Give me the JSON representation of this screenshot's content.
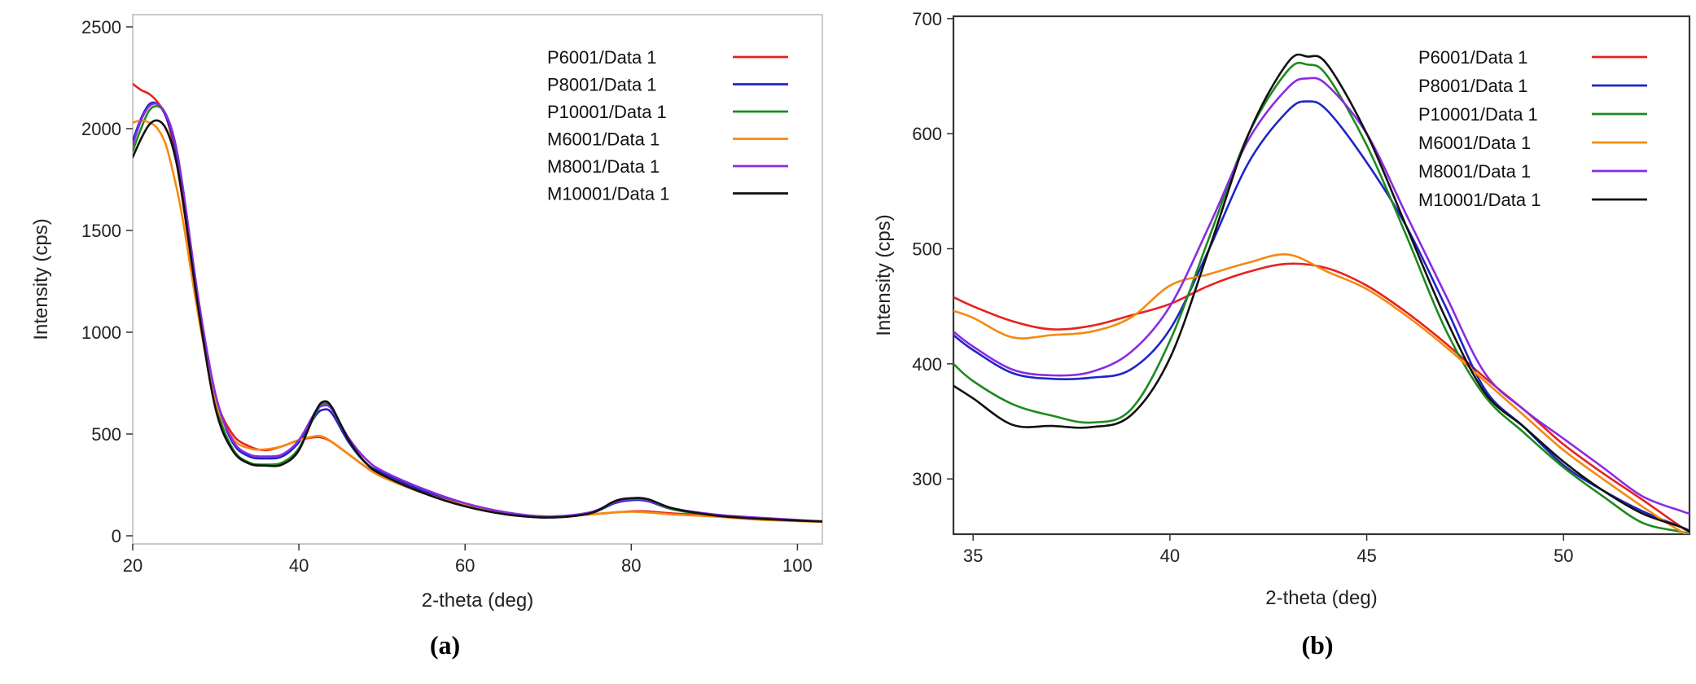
{
  "chart_data": [
    {
      "type": "line",
      "panel_label": "(a)",
      "xlabel": "2-theta (deg)",
      "ylabel": "Intensity (cps)",
      "xlim": [
        20,
        103
      ],
      "ylim": [
        -40,
        2560
      ],
      "x_ticks": [
        20,
        40,
        60,
        80,
        100
      ],
      "y_ticks": [
        0,
        500,
        1000,
        1500,
        2000,
        2500
      ],
      "grid": false,
      "legend_position": "top-right",
      "series": [
        {
          "name": "P6001/Data 1",
          "color": "#e8211d",
          "x": [
            20,
            21,
            22,
            23,
            24,
            25,
            26,
            28,
            30,
            32,
            34,
            36,
            38,
            40,
            42,
            43,
            44,
            46,
            48,
            50,
            55,
            60,
            65,
            70,
            75,
            78,
            80,
            82,
            85,
            90,
            95,
            100,
            103
          ],
          "y": [
            2220,
            2190,
            2170,
            2130,
            2060,
            1900,
            1650,
            1100,
            680,
            500,
            440,
            420,
            440,
            470,
            485,
            480,
            460,
            400,
            340,
            290,
            210,
            150,
            110,
            95,
            105,
            115,
            120,
            120,
            110,
            100,
            85,
            75,
            70
          ]
        },
        {
          "name": "P8001/Data 1",
          "color": "#1f25c8",
          "x": [
            20,
            21,
            22,
            23,
            24,
            25,
            26,
            28,
            30,
            32,
            34,
            36,
            38,
            40,
            42,
            43,
            44,
            46,
            48,
            50,
            55,
            60,
            65,
            70,
            75,
            78,
            80,
            82,
            85,
            90,
            95,
            100,
            103
          ],
          "y": [
            1940,
            2050,
            2120,
            2120,
            2060,
            1930,
            1700,
            1120,
            680,
            460,
            390,
            380,
            390,
            460,
            590,
            620,
            600,
            460,
            360,
            310,
            220,
            150,
            110,
            90,
            110,
            160,
            175,
            170,
            130,
            100,
            85,
            75,
            70
          ]
        },
        {
          "name": "P10001/Data 1",
          "color": "#1e8a1e",
          "x": [
            20,
            21,
            22,
            23,
            24,
            25,
            26,
            28,
            30,
            32,
            34,
            36,
            38,
            40,
            42,
            43,
            44,
            46,
            48,
            50,
            55,
            60,
            65,
            70,
            75,
            78,
            80,
            82,
            85,
            90,
            95,
            100,
            103
          ],
          "y": [
            1890,
            2000,
            2090,
            2110,
            2070,
            1950,
            1720,
            1130,
            650,
            430,
            360,
            350,
            360,
            430,
            600,
            650,
            620,
            470,
            360,
            300,
            210,
            145,
            105,
            90,
            110,
            165,
            180,
            175,
            130,
            100,
            85,
            75,
            70
          ]
        },
        {
          "name": "M6001/Data 1",
          "color": "#f58a10",
          "x": [
            20,
            21,
            22,
            23,
            24,
            25,
            26,
            28,
            30,
            32,
            34,
            36,
            38,
            40,
            42,
            43,
            44,
            46,
            48,
            50,
            55,
            60,
            65,
            70,
            75,
            78,
            80,
            82,
            85,
            90,
            95,
            100,
            103
          ],
          "y": [
            2030,
            2040,
            2030,
            2000,
            1920,
            1760,
            1560,
            1060,
            660,
            480,
            430,
            425,
            440,
            470,
            490,
            485,
            460,
            400,
            340,
            290,
            210,
            150,
            110,
            95,
            105,
            115,
            118,
            115,
            105,
            95,
            80,
            72,
            68
          ]
        },
        {
          "name": "M8001/Data 1",
          "color": "#8a2be2",
          "x": [
            20,
            21,
            22,
            23,
            24,
            25,
            26,
            28,
            30,
            32,
            34,
            36,
            38,
            40,
            42,
            43,
            44,
            46,
            48,
            50,
            55,
            60,
            65,
            70,
            75,
            78,
            80,
            82,
            85,
            90,
            95,
            100,
            103
          ],
          "y": [
            1920,
            2040,
            2110,
            2120,
            2070,
            1950,
            1720,
            1140,
            690,
            470,
            400,
            390,
            400,
            470,
            610,
            640,
            620,
            480,
            380,
            320,
            230,
            160,
            115,
            95,
            115,
            165,
            180,
            175,
            135,
            105,
            90,
            78,
            72
          ]
        },
        {
          "name": "M10001/Data 1",
          "color": "#111111",
          "x": [
            20,
            21,
            22,
            23,
            24,
            25,
            26,
            28,
            30,
            32,
            34,
            36,
            38,
            40,
            42,
            43,
            44,
            46,
            48,
            50,
            55,
            60,
            65,
            70,
            75,
            78,
            80,
            82,
            85,
            90,
            95,
            100,
            103
          ],
          "y": [
            1860,
            1950,
            2020,
            2040,
            2000,
            1880,
            1660,
            1090,
            620,
            420,
            355,
            345,
            350,
            420,
            610,
            660,
            630,
            470,
            360,
            300,
            210,
            145,
            105,
            90,
            110,
            170,
            185,
            180,
            135,
            100,
            85,
            75,
            70
          ]
        }
      ]
    },
    {
      "type": "line",
      "panel_label": "(b)",
      "xlabel": "2-theta (deg)",
      "ylabel": "Intensity (cps)",
      "xlim": [
        34.5,
        53.2
      ],
      "ylim": [
        252,
        702
      ],
      "x_ticks": [
        35,
        40,
        45,
        50
      ],
      "y_ticks": [
        300,
        400,
        500,
        600,
        700
      ],
      "grid": false,
      "legend_position": "top-right",
      "series": [
        {
          "name": "P6001/Data 1",
          "color": "#e8211d",
          "x": [
            34.5,
            35,
            36,
            37,
            38,
            39,
            40,
            41,
            42,
            43,
            44,
            45,
            46,
            47,
            48,
            49,
            50,
            51,
            52,
            53,
            53.2
          ],
          "y": [
            458,
            450,
            437,
            430,
            433,
            442,
            452,
            468,
            480,
            487,
            483,
            468,
            445,
            418,
            388,
            360,
            330,
            305,
            282,
            258,
            254
          ]
        },
        {
          "name": "P8001/Data 1",
          "color": "#1f25c8",
          "x": [
            34.5,
            35,
            36,
            37,
            38,
            39,
            40,
            41,
            42,
            43,
            43.5,
            44,
            45,
            46,
            47,
            48,
            49,
            50,
            51,
            52,
            53,
            53.2
          ],
          "y": [
            425,
            412,
            392,
            387,
            388,
            395,
            430,
            500,
            575,
            620,
            628,
            620,
            575,
            520,
            450,
            378,
            345,
            312,
            290,
            272,
            258,
            255
          ]
        },
        {
          "name": "P10001/Data 1",
          "color": "#1e8a1e",
          "x": [
            34.5,
            35,
            36,
            37,
            38,
            39,
            40,
            41,
            42,
            43,
            43.5,
            44,
            45,
            46,
            47,
            48,
            49,
            50,
            51,
            52,
            53,
            53.2
          ],
          "y": [
            400,
            385,
            365,
            355,
            349,
            360,
            420,
            510,
            600,
            655,
            660,
            650,
            590,
            512,
            430,
            372,
            340,
            310,
            285,
            262,
            254,
            252
          ]
        },
        {
          "name": "M6001/Data 1",
          "color": "#f58a10",
          "x": [
            34.5,
            35,
            36,
            37,
            38,
            39,
            40,
            41,
            42,
            43,
            44,
            45,
            46,
            47,
            48,
            49,
            50,
            51,
            52,
            53,
            53.2
          ],
          "y": [
            446,
            440,
            423,
            425,
            428,
            440,
            468,
            478,
            488,
            495,
            480,
            465,
            442,
            415,
            385,
            355,
            325,
            300,
            276,
            254,
            252
          ]
        },
        {
          "name": "M8001/Data 1",
          "color": "#8a2be2",
          "x": [
            34.5,
            35,
            36,
            37,
            38,
            39,
            40,
            41,
            42,
            43,
            43.5,
            44,
            45,
            46,
            47,
            48,
            49,
            50,
            51,
            52,
            53,
            53.2
          ],
          "y": [
            428,
            415,
            395,
            390,
            393,
            410,
            450,
            520,
            595,
            640,
            648,
            642,
            600,
            530,
            460,
            392,
            360,
            335,
            310,
            285,
            272,
            270
          ]
        },
        {
          "name": "M10001/Data 1",
          "color": "#111111",
          "x": [
            34.5,
            35,
            36,
            37,
            38,
            39,
            40,
            41,
            42,
            43,
            43.5,
            44,
            45,
            46,
            47,
            48,
            49,
            50,
            51,
            52,
            53,
            53.2
          ],
          "y": [
            381,
            370,
            347,
            346,
            345,
            355,
            405,
            500,
            600,
            662,
            667,
            660,
            600,
            520,
            440,
            375,
            345,
            315,
            290,
            270,
            258,
            254
          ]
        }
      ]
    }
  ]
}
